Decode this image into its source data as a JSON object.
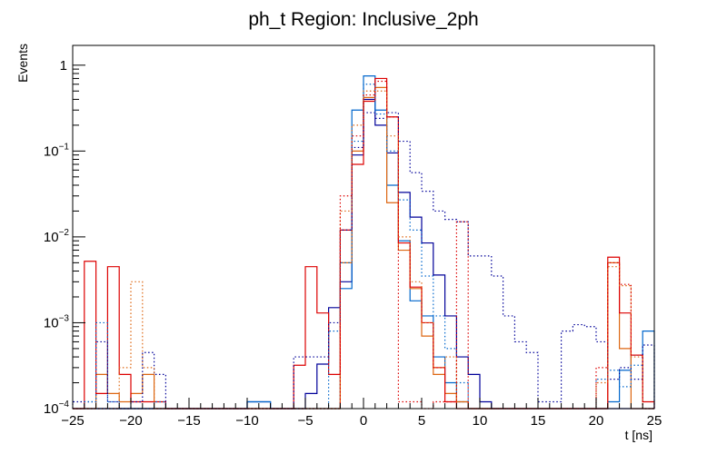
{
  "chart_data": {
    "type": "histogram-step",
    "title": "ph_t Region: Inclusive_2ph",
    "xlabel": "t [ns]",
    "ylabel": "Events",
    "xlim": [
      -25,
      25
    ],
    "ylim": [
      0.0001,
      1.7
    ],
    "yscale": "log",
    "bin_width": 1,
    "x_ticks": [
      -25,
      -20,
      -15,
      -10,
      -5,
      0,
      5,
      10,
      15,
      20,
      25
    ],
    "x_tick_labels": [
      "−25",
      "−20",
      "−15",
      "−10",
      "−5",
      "0",
      "5",
      "10",
      "15",
      "20",
      "25"
    ],
    "y_ticks": [
      {
        "value": 0.0001,
        "base": "10",
        "exp": "−4"
      },
      {
        "value": 0.001,
        "base": "10",
        "exp": "−3"
      },
      {
        "value": 0.01,
        "base": "10",
        "exp": "−2"
      },
      {
        "value": 0.1,
        "base": "10",
        "exp": "−1"
      },
      {
        "value": 1,
        "base": "1",
        "exp": ""
      }
    ],
    "series": [
      {
        "name": "navy solid",
        "color": "#000099",
        "dash": false,
        "bins": [
          [
            -10,
            0.00012
          ],
          [
            -9,
            0.00012
          ],
          [
            -5,
            0.00015
          ],
          [
            -4,
            0.00033
          ],
          [
            -3,
            0.0015
          ],
          [
            -2,
            0.003
          ],
          [
            -1,
            0.09
          ],
          [
            0,
            0.4
          ],
          [
            1,
            0.2
          ],
          [
            2,
            0.095
          ],
          [
            3,
            0.033
          ],
          [
            4,
            0.017
          ],
          [
            5,
            0.0085
          ],
          [
            6,
            0.0036
          ],
          [
            7,
            0.0012
          ],
          [
            8,
            0.0004
          ],
          [
            9,
            0.00025
          ],
          [
            10,
            0.00012
          ]
        ]
      },
      {
        "name": "blue solid",
        "color": "#0066cc",
        "dash": false,
        "bins": [
          [
            -10,
            0.00012
          ],
          [
            -9,
            0.00012
          ],
          [
            -2,
            0.0025
          ],
          [
            -1,
            0.3
          ],
          [
            0,
            0.75
          ],
          [
            1,
            0.3
          ],
          [
            2,
            0.04
          ],
          [
            3,
            0.009
          ],
          [
            4,
            0.0018
          ],
          [
            5,
            0.0012
          ],
          [
            6,
            0.0004
          ],
          [
            7,
            0.0002
          ],
          [
            8,
            0.00012
          ],
          [
            21,
            0.00012
          ],
          [
            22,
            0.00028
          ],
          [
            23,
            0.00042
          ],
          [
            24,
            0.0008
          ]
        ]
      },
      {
        "name": "orange solid",
        "color": "#dd6611",
        "dash": false,
        "bins": [
          [
            -23,
            0.00025
          ],
          [
            -22,
            0.00015
          ],
          [
            -21,
            0.00012
          ],
          [
            -20,
            0.00015
          ],
          [
            -19,
            0.00025
          ],
          [
            -2,
            0.005
          ],
          [
            -1,
            0.1
          ],
          [
            0,
            0.42
          ],
          [
            1,
            0.55
          ],
          [
            2,
            0.025
          ],
          [
            3,
            0.007
          ],
          [
            4,
            0.0025
          ],
          [
            5,
            0.0007
          ],
          [
            6,
            0.00025
          ],
          [
            7,
            0.00015
          ],
          [
            8,
            0.00012
          ],
          [
            21,
            0.005
          ],
          [
            22,
            0.0005
          ]
        ]
      },
      {
        "name": "red solid",
        "color": "#dd0000",
        "dash": false,
        "bins": [
          [
            -24,
            0.0052
          ],
          [
            -23,
            0.00015
          ],
          [
            -22,
            0.0045
          ],
          [
            -21,
            0.00025
          ],
          [
            -20,
            0.00012
          ],
          [
            -19,
            0.00012
          ],
          [
            -18,
            0.00012
          ],
          [
            -6,
            0.00032
          ],
          [
            -5,
            0.0045
          ],
          [
            -4,
            0.0013
          ],
          [
            -3,
            0.00025
          ],
          [
            -2,
            0.012
          ],
          [
            -1,
            0.07
          ],
          [
            0,
            0.38
          ],
          [
            1,
            0.7
          ],
          [
            2,
            0.25
          ],
          [
            3,
            0.0085
          ],
          [
            4,
            0.0026
          ],
          [
            5,
            0.001
          ],
          [
            6,
            0.0003
          ],
          [
            7,
            0.00012
          ],
          [
            21,
            0.0058
          ],
          [
            22,
            0.0013
          ],
          [
            23,
            0.00042
          ],
          [
            24,
            0.00012
          ]
        ]
      },
      {
        "name": "navy dotted",
        "color": "#000099",
        "dash": true,
        "bins": [
          [
            -25,
            0.00012
          ],
          [
            -24,
            0.00012
          ],
          [
            -23,
            0.0006
          ],
          [
            -22,
            0.00012
          ],
          [
            -20,
            0.00012
          ],
          [
            -19,
            0.00045
          ],
          [
            -18,
            0.00025
          ],
          [
            -6,
            0.0004
          ],
          [
            -5,
            0.0004
          ],
          [
            -4,
            0.0004
          ],
          [
            -3,
            0.001
          ],
          [
            -2,
            0.012
          ],
          [
            -1,
            0.11
          ],
          [
            0,
            0.28
          ],
          [
            1,
            0.24
          ],
          [
            2,
            0.28
          ],
          [
            3,
            0.13
          ],
          [
            4,
            0.056
          ],
          [
            5,
            0.034
          ],
          [
            6,
            0.02
          ],
          [
            7,
            0.016
          ],
          [
            8,
            0.015
          ],
          [
            9,
            0.006
          ],
          [
            10,
            0.006
          ],
          [
            11,
            0.0035
          ],
          [
            12,
            0.0012
          ],
          [
            13,
            0.0006
          ],
          [
            14,
            0.00045
          ],
          [
            15,
            0.00012
          ],
          [
            16,
            0.00012
          ],
          [
            17,
            0.0008
          ],
          [
            18,
            0.00095
          ],
          [
            19,
            0.0009
          ],
          [
            20,
            0.0006
          ],
          [
            21,
            0.00022
          ],
          [
            22,
            0.0003
          ],
          [
            23,
            0.00022
          ],
          [
            24,
            0.00055
          ]
        ]
      },
      {
        "name": "blue dotted",
        "color": "#0066cc",
        "dash": true,
        "bins": [
          [
            -24,
            0.00012
          ],
          [
            -23,
            0.001
          ],
          [
            -22,
            0.00012
          ],
          [
            -18,
            0.00012
          ],
          [
            -3,
            0.0008
          ],
          [
            -2,
            0.005
          ],
          [
            -1,
            0.13
          ],
          [
            0,
            0.6
          ],
          [
            1,
            0.27
          ],
          [
            2,
            0.1
          ],
          [
            3,
            0.027
          ],
          [
            4,
            0.012
          ],
          [
            5,
            0.0035
          ],
          [
            6,
            0.0012
          ],
          [
            7,
            0.0005
          ],
          [
            8,
            0.0002
          ],
          [
            20,
            0.00022
          ],
          [
            21,
            0.00028
          ],
          [
            22,
            0.00018
          ],
          [
            23,
            0.00032
          ]
        ]
      },
      {
        "name": "orange dotted",
        "color": "#dd6611",
        "dash": true,
        "bins": [
          [
            -21,
            0.0003
          ],
          [
            -20,
            0.003
          ],
          [
            -19,
            0.0003
          ],
          [
            -2,
            0.02
          ],
          [
            -1,
            0.2
          ],
          [
            0,
            0.5
          ],
          [
            1,
            0.5
          ],
          [
            2,
            0.15
          ],
          [
            3,
            0.01
          ],
          [
            4,
            0.003
          ],
          [
            5,
            0.001
          ],
          [
            6,
            0.0003
          ],
          [
            7,
            0.0004
          ],
          [
            8,
            0.00012
          ],
          [
            20,
            0.0002
          ],
          [
            21,
            0.0045
          ],
          [
            22,
            0.0027
          ],
          [
            23,
            0.0004
          ]
        ]
      },
      {
        "name": "red dotted",
        "color": "#dd0000",
        "dash": true,
        "bins": [
          [
            -2,
            0.03
          ],
          [
            -1,
            0.15
          ],
          [
            0,
            0.45
          ],
          [
            1,
            0.65
          ],
          [
            2,
            0.25
          ],
          [
            3,
            0.00012
          ],
          [
            4,
            0.00012
          ],
          [
            6,
            0.00012
          ],
          [
            7,
            0.00012
          ],
          [
            8,
            0.015
          ],
          [
            20,
            0.0003
          ],
          [
            21,
            0.005
          ],
          [
            22,
            0.0028
          ],
          [
            23,
            0.00042
          ]
        ]
      }
    ]
  }
}
